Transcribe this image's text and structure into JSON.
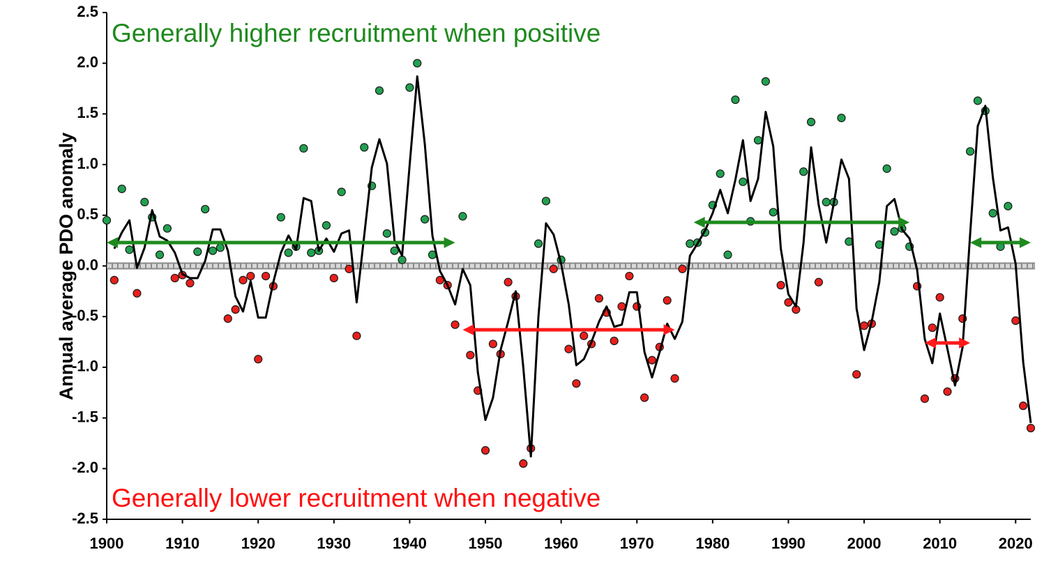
{
  "chart_data": {
    "type": "scatter",
    "y_label": "Annual average PDO anomaly",
    "annotations": [
      {
        "text": "Generally higher recruitment when positive",
        "color": "#1e8a1e"
      },
      {
        "text": "Generally lower recruitment when negative",
        "color": "#ff1010"
      }
    ],
    "xlim": [
      1900,
      2022
    ],
    "ylim": [
      -2.5,
      2.5
    ],
    "xticks": [
      1900,
      1910,
      1920,
      1930,
      1940,
      1950,
      1960,
      1970,
      1980,
      1990,
      2000,
      2010,
      2020
    ],
    "yticks": [
      -2.5,
      {
        "value": -2,
        "label": "-2.0"
      },
      -1.5,
      {
        "value": -1,
        "label": "-1.0"
      },
      -0.5,
      {
        "value": 0,
        "label": "0.0"
      },
      0.5,
      {
        "value": 1,
        "label": "1.0"
      },
      1.5,
      {
        "value": 2,
        "label": "2.0"
      },
      2.5
    ],
    "zero_line": true,
    "series": [
      {
        "type": "scatter",
        "positive_color": "#22a050",
        "negative_color": "#e8201c",
        "x": [
          1900,
          1901,
          1902,
          1903,
          1904,
          1905,
          1906,
          1907,
          1908,
          1909,
          1910,
          1911,
          1912,
          1913,
          1914,
          1915,
          1916,
          1917,
          1918,
          1919,
          1920,
          1921,
          1922,
          1923,
          1924,
          1925,
          1926,
          1927,
          1928,
          1929,
          1930,
          1931,
          1932,
          1933,
          1934,
          1935,
          1936,
          1937,
          1938,
          1939,
          1940,
          1941,
          1942,
          1943,
          1944,
          1945,
          1946,
          1947,
          1948,
          1949,
          1950,
          1951,
          1952,
          1953,
          1954,
          1955,
          1956,
          1957,
          1958,
          1959,
          1960,
          1961,
          1962,
          1963,
          1964,
          1965,
          1966,
          1967,
          1968,
          1969,
          1970,
          1971,
          1972,
          1973,
          1974,
          1975,
          1976,
          1977,
          1978,
          1979,
          1980,
          1981,
          1982,
          1983,
          1984,
          1985,
          1986,
          1987,
          1988,
          1989,
          1990,
          1991,
          1992,
          1993,
          1994,
          1995,
          1996,
          1997,
          1998,
          1999,
          2000,
          2001,
          2002,
          2003,
          2004,
          2005,
          2006,
          2007,
          2008,
          2009,
          2010,
          2011,
          2012,
          2013,
          2014,
          2015,
          2016,
          2017,
          2018,
          2019,
          2020,
          2021,
          2022
        ],
        "values": [
          0.45,
          -0.14,
          0.76,
          0.16,
          -0.27,
          0.63,
          0.48,
          0.11,
          0.37,
          -0.12,
          -0.09,
          -0.17,
          0.14,
          0.56,
          0.15,
          0.18,
          -0.52,
          -0.43,
          -0.14,
          -0.1,
          -0.92,
          -0.1,
          -0.2,
          0.48,
          0.13,
          0.19,
          1.16,
          0.13,
          0.15,
          0.4,
          -0.12,
          0.73,
          -0.03,
          -0.69,
          1.17,
          0.79,
          1.73,
          0.32,
          0.15,
          0.06,
          1.76,
          2.0,
          0.46,
          0.11,
          -0.14,
          -0.19,
          -0.58,
          0.49,
          -0.88,
          -1.23,
          -1.82,
          -0.77,
          -0.87,
          -0.16,
          -0.3,
          -1.95,
          -1.8,
          0.22,
          0.64,
          -0.03,
          0.06,
          -0.82,
          -1.16,
          -0.69,
          -0.77,
          -0.32,
          -0.46,
          -0.74,
          -0.4,
          -0.1,
          -0.4,
          -1.3,
          -0.93,
          -0.8,
          -0.34,
          -1.11,
          -0.03,
          0.22,
          0.23,
          0.33,
          0.6,
          0.91,
          0.11,
          1.64,
          0.83,
          0.44,
          1.24,
          1.82,
          0.53,
          -0.19,
          -0.36,
          -0.43,
          0.93,
          1.42,
          -0.16,
          0.63,
          0.63,
          1.46,
          0.24,
          -1.07,
          -0.59,
          -0.57,
          0.21,
          0.96,
          0.34,
          0.37,
          0.19,
          -0.2,
          -1.31,
          -0.61,
          -0.31,
          -1.24,
          -1.11,
          -0.52,
          1.13,
          1.63,
          1.53,
          0.52,
          0.19,
          0.59,
          -0.54,
          -1.38,
          -1.6
        ]
      },
      {
        "type": "line",
        "color": "#000000",
        "x": [
          1901,
          1902,
          1903,
          1904,
          1905,
          1906,
          1907,
          1908,
          1909,
          1910,
          1911,
          1912,
          1913,
          1914,
          1915,
          1916,
          1917,
          1918,
          1919,
          1920,
          1921,
          1922,
          1923,
          1924,
          1925,
          1926,
          1927,
          1928,
          1929,
          1930,
          1931,
          1932,
          1933,
          1934,
          1935,
          1936,
          1937,
          1938,
          1939,
          1940,
          1941,
          1942,
          1943,
          1944,
          1945,
          1946,
          1947,
          1948,
          1949,
          1950,
          1951,
          1952,
          1953,
          1954,
          1955,
          1956,
          1957,
          1958,
          1959,
          1960,
          1961,
          1962,
          1963,
          1964,
          1965,
          1966,
          1967,
          1968,
          1969,
          1970,
          1971,
          1972,
          1973,
          1974,
          1975,
          1976,
          1977,
          1978,
          1979,
          1980,
          1981,
          1982,
          1983,
          1984,
          1985,
          1986,
          1987,
          1988,
          1989,
          1990,
          1991,
          1992,
          1993,
          1994,
          1995,
          1996,
          1997,
          1998,
          1999,
          2000,
          2001,
          2002,
          2003,
          2004,
          2005,
          2006,
          2007,
          2008,
          2009,
          2010,
          2011,
          2012,
          2013,
          2014,
          2015,
          2016,
          2017,
          2018,
          2019,
          2020,
          2021,
          2022
        ],
        "values": [
          0.17,
          0.33,
          0.45,
          -0.02,
          0.18,
          0.55,
          0.29,
          0.25,
          0.13,
          -0.08,
          -0.12,
          -0.12,
          0.05,
          0.36,
          0.36,
          0.15,
          -0.3,
          -0.45,
          -0.15,
          -0.51,
          -0.51,
          -0.16,
          0.13,
          0.3,
          0.16,
          0.67,
          0.64,
          0.15,
          0.27,
          0.14,
          0.32,
          0.35,
          -0.36,
          0.3,
          0.97,
          1.25,
          1.01,
          0.25,
          0.1,
          1.0,
          1.87,
          1.2,
          0.3,
          -0.05,
          -0.19,
          -0.38,
          -0.03,
          -0.19,
          -1.05,
          -1.52,
          -1.3,
          -0.83,
          -0.55,
          -0.25,
          -1.0,
          -1.88,
          -0.5,
          0.42,
          0.31,
          0.02,
          -0.38,
          -0.98,
          -0.92,
          -0.75,
          -0.55,
          -0.4,
          -0.6,
          -0.58,
          -0.26,
          -0.26,
          -0.85,
          -1.1,
          -0.85,
          -0.57,
          -0.72,
          -0.55,
          0.1,
          0.22,
          0.35,
          0.52,
          0.75,
          0.52,
          0.85,
          1.24,
          0.64,
          0.86,
          1.52,
          1.18,
          0.17,
          -0.28,
          -0.4,
          0.23,
          1.17,
          0.6,
          0.23,
          0.62,
          1.05,
          0.86,
          -0.42,
          -0.83,
          -0.55,
          -0.16,
          0.59,
          0.66,
          0.36,
          0.27,
          -0.04,
          -0.72,
          -0.96,
          -0.47,
          -0.82,
          -1.18,
          -0.8,
          0.32,
          1.38,
          1.58,
          0.87,
          0.35,
          0.38,
          0.02,
          -0.95,
          -1.55
        ]
      }
    ],
    "periods": [
      {
        "start": 1900,
        "end": 1946,
        "y": 0.23,
        "color": "#1e8a1e"
      },
      {
        "start": 1947,
        "end": 1975,
        "y": -0.63,
        "color": "#ff1a1a"
      },
      {
        "start": 1977.5,
        "end": 2006,
        "y": 0.43,
        "color": "#1e8a1e"
      },
      {
        "start": 2008,
        "end": 2014,
        "y": -0.76,
        "color": "#ff1a1a"
      },
      {
        "start": 2014,
        "end": 2022,
        "y": 0.23,
        "color": "#1e8a1e"
      }
    ]
  }
}
